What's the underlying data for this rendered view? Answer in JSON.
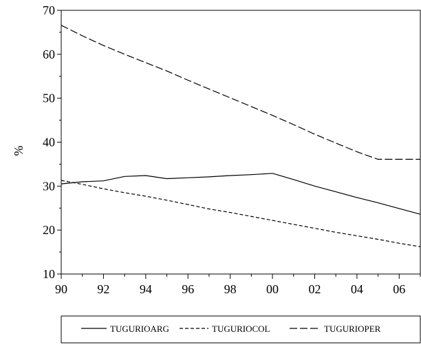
{
  "chart_data": {
    "type": "line",
    "title": "",
    "xlabel": "",
    "ylabel": "%",
    "xlim": [
      1990,
      2007
    ],
    "ylim": [
      10,
      70
    ],
    "x_ticks": [
      1990,
      1992,
      1994,
      1996,
      1998,
      2000,
      2002,
      2004,
      2006
    ],
    "x_tick_labels": [
      "90",
      "92",
      "94",
      "96",
      "98",
      "00",
      "02",
      "04",
      "06"
    ],
    "y_ticks": [
      10,
      20,
      30,
      40,
      50,
      60,
      70
    ],
    "y_tick_labels": [
      "10",
      "20",
      "30",
      "40",
      "50",
      "60",
      "70"
    ],
    "grid": false,
    "legend_position": "bottom",
    "series": [
      {
        "name": "TUGURIOARG",
        "style": "solid",
        "color": "#000000",
        "x": [
          1990,
          1991,
          1992,
          1993,
          1994,
          1995,
          1996,
          1997,
          1998,
          1999,
          2000,
          2001,
          2002,
          2003,
          2004,
          2005,
          2006,
          2007
        ],
        "y": [
          30.5,
          31.0,
          31.2,
          32.2,
          32.4,
          31.7,
          31.9,
          32.1,
          32.4,
          32.6,
          32.9,
          31.5,
          30.0,
          28.7,
          27.4,
          26.2,
          24.9,
          23.6
        ]
      },
      {
        "name": "TUGURIOCOL",
        "style": "dashed-short",
        "color": "#000000",
        "x": [
          1990,
          1991,
          1992,
          1993,
          1994,
          1995,
          1996,
          1997,
          1998,
          1999,
          2000,
          2001,
          2002,
          2003,
          2004,
          2005,
          2006,
          2007
        ],
        "y": [
          31.3,
          30.4,
          29.4,
          28.5,
          27.7,
          26.8,
          25.8,
          24.8,
          24.0,
          23.1,
          22.2,
          21.3,
          20.4,
          19.5,
          18.7,
          17.9,
          17.0,
          16.2
        ]
      },
      {
        "name": "TUGURIOPER",
        "style": "dashed-long",
        "color": "#000000",
        "x": [
          1990,
          1991,
          1992,
          1993,
          1994,
          1995,
          1996,
          1997,
          1998,
          1999,
          2000,
          2001,
          2002,
          2003,
          2004,
          2005,
          2006,
          2007
        ],
        "y": [
          66.6,
          64.2,
          62.0,
          60.0,
          58.1,
          56.2,
          54.1,
          52.1,
          50.1,
          48.1,
          46.1,
          44.0,
          41.8,
          39.8,
          37.8,
          36.1,
          36.1,
          36.1
        ]
      }
    ]
  }
}
